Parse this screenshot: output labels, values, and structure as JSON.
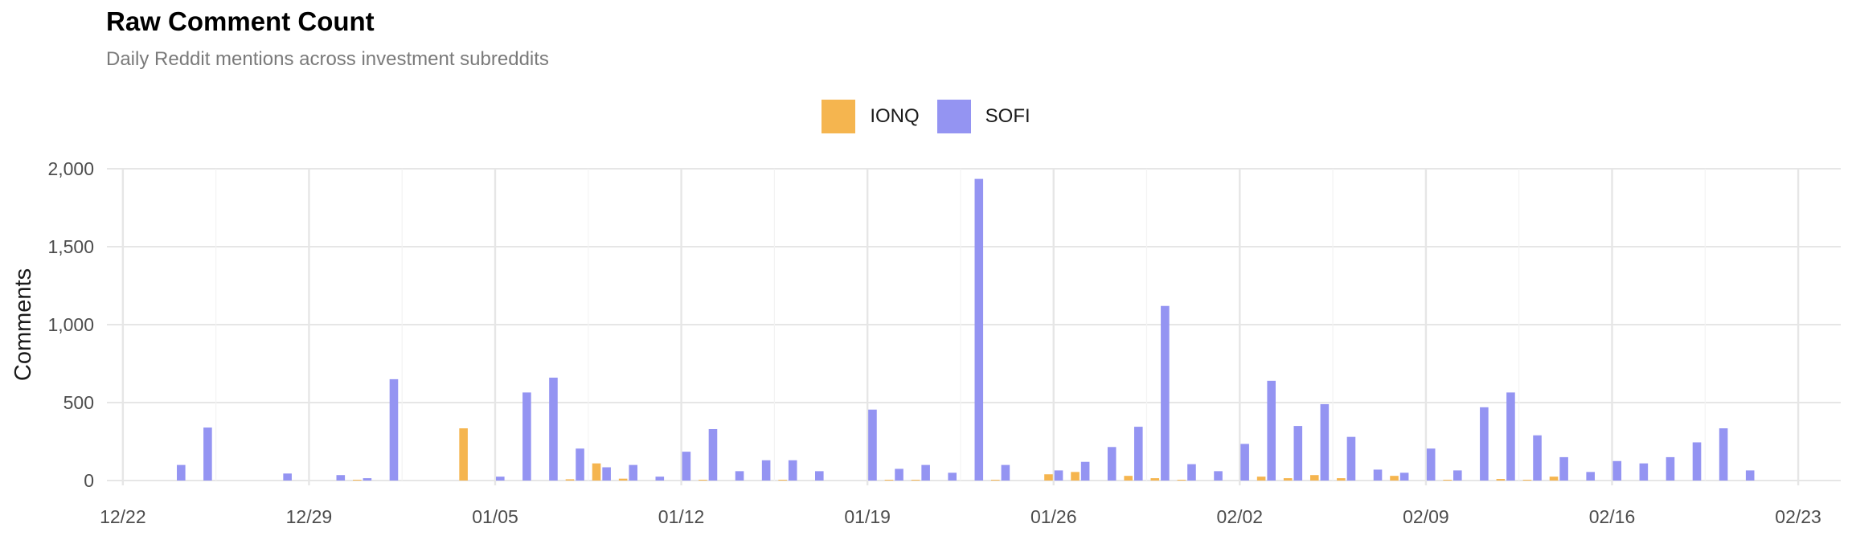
{
  "chart_data": {
    "type": "bar",
    "title": "Raw Comment Count",
    "subtitle": "Daily Reddit mentions across investment subreddits",
    "xlabel": "",
    "ylabel": "Comments",
    "ylim": [
      0,
      2000
    ],
    "yticks": [
      0,
      500,
      1000,
      1500,
      2000
    ],
    "ytick_labels": [
      "0",
      "500",
      "1,000",
      "1,500",
      "2,000"
    ],
    "xlim_days": [
      -0.6,
      64.6
    ],
    "xtick_labels": [
      "12/22",
      "12/29",
      "01/05",
      "01/12",
      "01/19",
      "01/26",
      "02/02",
      "02/09",
      "02/16",
      "02/23"
    ],
    "grid": true,
    "legend_position": "top-center",
    "colors": {
      "IONQ": "#f5b54f",
      "SOFI": "#9494f2"
    },
    "categories": [
      "12/22",
      "12/23",
      "12/24",
      "12/25",
      "12/26",
      "12/27",
      "12/28",
      "12/29",
      "12/30",
      "12/31",
      "01/01",
      "01/02",
      "01/03",
      "01/04",
      "01/05",
      "01/06",
      "01/07",
      "01/08",
      "01/09",
      "01/10",
      "01/11",
      "01/12",
      "01/13",
      "01/14",
      "01/15",
      "01/16",
      "01/17",
      "01/18",
      "01/19",
      "01/20",
      "01/21",
      "01/22",
      "01/23",
      "01/24",
      "01/25",
      "01/26",
      "01/27",
      "01/28",
      "01/29",
      "01/30",
      "01/31",
      "02/01",
      "02/02",
      "02/03",
      "02/04",
      "02/05",
      "02/06",
      "02/07",
      "02/08",
      "02/09",
      "02/10",
      "02/11",
      "02/12",
      "02/13",
      "02/14",
      "02/15",
      "02/16",
      "02/17",
      "02/18",
      "02/19",
      "02/20",
      "02/21",
      "02/22",
      "02/23"
    ],
    "series": [
      {
        "name": "IONQ",
        "values": [
          0,
          0,
          0,
          0,
          0,
          0,
          0,
          0,
          0,
          5,
          0,
          0,
          0,
          335,
          0,
          0,
          0,
          8,
          110,
          12,
          0,
          0,
          5,
          0,
          0,
          5,
          0,
          0,
          0,
          5,
          5,
          0,
          0,
          5,
          0,
          40,
          55,
          0,
          30,
          15,
          5,
          0,
          0,
          25,
          15,
          35,
          15,
          0,
          30,
          0,
          5,
          0,
          10,
          5,
          25,
          0,
          0,
          0,
          0,
          0,
          0,
          0,
          0,
          0
        ]
      },
      {
        "name": "SOFI",
        "values": [
          0,
          0,
          100,
          340,
          0,
          0,
          45,
          0,
          35,
          15,
          650,
          0,
          0,
          0,
          25,
          565,
          660,
          205,
          85,
          100,
          25,
          185,
          330,
          60,
          130,
          130,
          60,
          0,
          455,
          75,
          100,
          50,
          1935,
          100,
          0,
          65,
          120,
          215,
          345,
          1120,
          105,
          60,
          235,
          640,
          350,
          490,
          280,
          70,
          50,
          205,
          65,
          470,
          565,
          290,
          150,
          55,
          125,
          110,
          150,
          245,
          335,
          65,
          0,
          0
        ]
      }
    ]
  }
}
